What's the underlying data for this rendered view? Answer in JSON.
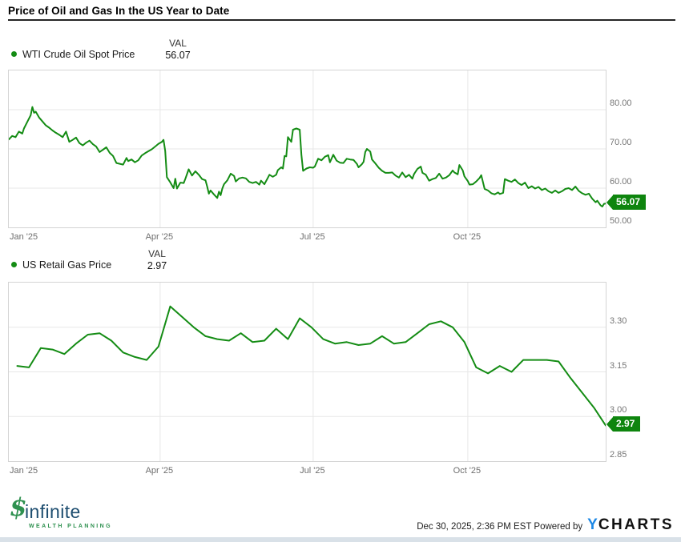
{
  "title": "Price of Oil and Gas In the US Year to Date",
  "chart_data": [
    {
      "type": "line",
      "name": "WTI Crude Oil Spot Price",
      "val_header": "VAL",
      "end_badge": "56.07",
      "last_value": 56.07,
      "color": "#148c14",
      "badge_color": "#0e850e",
      "grid": true,
      "legend_position": "top-left",
      "x_unit": "days since Jan 1 2025",
      "xlim": [
        0,
        355
      ],
      "ylim": [
        50,
        90
      ],
      "x_ticks": [
        {
          "label": "Jan '25",
          "day": 0
        },
        {
          "label": "Apr '25",
          "day": 90
        },
        {
          "label": "Jul '25",
          "day": 181
        },
        {
          "label": "Oct '25",
          "day": 273
        }
      ],
      "y_ticks": [
        {
          "label": "80.00",
          "value": 80
        },
        {
          "label": "70.00",
          "value": 70
        },
        {
          "label": "60.00",
          "value": 60
        },
        {
          "label": "50.00",
          "value": 50
        }
      ],
      "points": [
        [
          0,
          72.4
        ],
        [
          2,
          73.3
        ],
        [
          4,
          73.0
        ],
        [
          6,
          74.4
        ],
        [
          8,
          73.9
        ],
        [
          9,
          75.2
        ],
        [
          11,
          76.9
        ],
        [
          13,
          78.6
        ],
        [
          14,
          80.7
        ],
        [
          15,
          79.2
        ],
        [
          16,
          79.5
        ],
        [
          18,
          78.0
        ],
        [
          20,
          77.0
        ],
        [
          22,
          76.0
        ],
        [
          24,
          75.4
        ],
        [
          26,
          74.7
        ],
        [
          28,
          74.1
        ],
        [
          30,
          73.6
        ],
        [
          32,
          73.0
        ],
        [
          34,
          74.4
        ],
        [
          36,
          71.8
        ],
        [
          38,
          72.3
        ],
        [
          40,
          72.9
        ],
        [
          42,
          71.5
        ],
        [
          44,
          70.9
        ],
        [
          46,
          71.6
        ],
        [
          48,
          72.1
        ],
        [
          50,
          71.2
        ],
        [
          52,
          70.6
        ],
        [
          54,
          69.2
        ],
        [
          56,
          69.8
        ],
        [
          58,
          70.4
        ],
        [
          60,
          69.0
        ],
        [
          62,
          68.2
        ],
        [
          64,
          66.4
        ],
        [
          66,
          66.2
        ],
        [
          68,
          66.0
        ],
        [
          70,
          67.7
        ],
        [
          71,
          66.9
        ],
        [
          73,
          67.3
        ],
        [
          75,
          66.6
        ],
        [
          77,
          67.1
        ],
        [
          79,
          68.3
        ],
        [
          81,
          68.9
        ],
        [
          83,
          69.4
        ],
        [
          85,
          69.9
        ],
        [
          87,
          70.6
        ],
        [
          89,
          71.3
        ],
        [
          91,
          71.8
        ],
        [
          92,
          72.3
        ],
        [
          93,
          69.5
        ],
        [
          94,
          62.8
        ],
        [
          96,
          61.5
        ],
        [
          98,
          60.0
        ],
        [
          99,
          62.4
        ],
        [
          100,
          59.9
        ],
        [
          102,
          61.4
        ],
        [
          104,
          61.3
        ],
        [
          105,
          62.4
        ],
        [
          107,
          64.8
        ],
        [
          109,
          63.2
        ],
        [
          111,
          64.3
        ],
        [
          113,
          63.4
        ],
        [
          115,
          62.3
        ],
        [
          117,
          62.0
        ],
        [
          118,
          60.4
        ],
        [
          119,
          58.6
        ],
        [
          120,
          59.4
        ],
        [
          122,
          58.4
        ],
        [
          124,
          57.5
        ],
        [
          125,
          59.1
        ],
        [
          126,
          58.2
        ],
        [
          127,
          59.9
        ],
        [
          128,
          61.0
        ],
        [
          130,
          62.0
        ],
        [
          132,
          63.7
        ],
        [
          134,
          63.1
        ],
        [
          135,
          61.7
        ],
        [
          137,
          62.5
        ],
        [
          139,
          62.7
        ],
        [
          141,
          62.5
        ],
        [
          143,
          61.6
        ],
        [
          145,
          61.3
        ],
        [
          147,
          61.6
        ],
        [
          149,
          60.9
        ],
        [
          150,
          61.9
        ],
        [
          152,
          61.0
        ],
        [
          154,
          62.6
        ],
        [
          155,
          63.4
        ],
        [
          157,
          62.9
        ],
        [
          159,
          63.4
        ],
        [
          160,
          64.6
        ],
        [
          162,
          65.3
        ],
        [
          163,
          65.0
        ],
        [
          164,
          68.2
        ],
        [
          165,
          68.1
        ],
        [
          166,
          73.0
        ],
        [
          168,
          71.8
        ],
        [
          169,
          74.9
        ],
        [
          171,
          75.2
        ],
        [
          173,
          74.9
        ],
        [
          174,
          68.5
        ],
        [
          175,
          64.4
        ],
        [
          177,
          65.0
        ],
        [
          179,
          65.3
        ],
        [
          181,
          65.2
        ],
        [
          182,
          65.5
        ],
        [
          184,
          67.5
        ],
        [
          186,
          67.1
        ],
        [
          188,
          68.0
        ],
        [
          190,
          68.4
        ],
        [
          191,
          66.6
        ],
        [
          193,
          68.5
        ],
        [
          195,
          67.0
        ],
        [
          197,
          66.5
        ],
        [
          199,
          66.4
        ],
        [
          201,
          67.5
        ],
        [
          203,
          67.3
        ],
        [
          205,
          67.2
        ],
        [
          207,
          66.2
        ],
        [
          208,
          65.3
        ],
        [
          210,
          66.1
        ],
        [
          211,
          66.7
        ],
        [
          212,
          69.2
        ],
        [
          213,
          70.0
        ],
        [
          215,
          69.3
        ],
        [
          216,
          67.3
        ],
        [
          218,
          66.3
        ],
        [
          220,
          65.2
        ],
        [
          222,
          64.4
        ],
        [
          224,
          63.9
        ],
        [
          226,
          63.9
        ],
        [
          228,
          64.0
        ],
        [
          230,
          63.2
        ],
        [
          232,
          62.7
        ],
        [
          234,
          64.0
        ],
        [
          236,
          62.8
        ],
        [
          238,
          63.4
        ],
        [
          240,
          62.4
        ],
        [
          241,
          63.6
        ],
        [
          243,
          64.9
        ],
        [
          245,
          65.5
        ],
        [
          246,
          63.9
        ],
        [
          248,
          63.4
        ],
        [
          250,
          61.9
        ],
        [
          252,
          62.3
        ],
        [
          254,
          62.6
        ],
        [
          256,
          63.7
        ],
        [
          258,
          62.4
        ],
        [
          260,
          62.7
        ],
        [
          262,
          63.3
        ],
        [
          264,
          64.5
        ],
        [
          265,
          64.0
        ],
        [
          267,
          63.5
        ],
        [
          268,
          65.9
        ],
        [
          270,
          64.5
        ],
        [
          271,
          63.0
        ],
        [
          273,
          61.8
        ],
        [
          274,
          60.9
        ],
        [
          276,
          61.0
        ],
        [
          278,
          61.7
        ],
        [
          280,
          62.6
        ],
        [
          281,
          63.3
        ],
        [
          283,
          59.8
        ],
        [
          285,
          59.4
        ],
        [
          287,
          58.7
        ],
        [
          289,
          58.4
        ],
        [
          291,
          58.9
        ],
        [
          292,
          58.5
        ],
        [
          294,
          58.8
        ],
        [
          295,
          62.3
        ],
        [
          297,
          61.9
        ],
        [
          299,
          61.6
        ],
        [
          301,
          62.2
        ],
        [
          303,
          61.3
        ],
        [
          305,
          60.8
        ],
        [
          307,
          61.4
        ],
        [
          309,
          60.0
        ],
        [
          311,
          60.5
        ],
        [
          313,
          59.9
        ],
        [
          315,
          60.3
        ],
        [
          317,
          59.5
        ],
        [
          319,
          59.9
        ],
        [
          321,
          59.2
        ],
        [
          323,
          58.8
        ],
        [
          325,
          59.4
        ],
        [
          327,
          58.8
        ],
        [
          329,
          59.2
        ],
        [
          331,
          59.8
        ],
        [
          333,
          60.0
        ],
        [
          335,
          59.5
        ],
        [
          337,
          60.4
        ],
        [
          339,
          59.3
        ],
        [
          341,
          58.7
        ],
        [
          343,
          58.3
        ],
        [
          345,
          58.6
        ],
        [
          347,
          57.3
        ],
        [
          349,
          56.4
        ],
        [
          350,
          56.8
        ],
        [
          352,
          55.6
        ],
        [
          353,
          55.3
        ],
        [
          354,
          56.0
        ],
        [
          355,
          56.07
        ]
      ]
    },
    {
      "type": "line",
      "name": "US Retail Gas Price",
      "val_header": "VAL",
      "end_badge": "2.97",
      "last_value": 2.97,
      "color": "#148c14",
      "badge_color": "#0e850e",
      "grid": true,
      "legend_position": "top-left",
      "x_unit": "days since Jan 1 2025",
      "xlim": [
        0,
        355
      ],
      "ylim": [
        2.85,
        3.45
      ],
      "x_ticks": [
        {
          "label": "Jan '25",
          "day": 0
        },
        {
          "label": "Apr '25",
          "day": 90
        },
        {
          "label": "Jul '25",
          "day": 181
        },
        {
          "label": "Oct '25",
          "day": 273
        }
      ],
      "y_ticks": [
        {
          "label": "3.30",
          "value": 3.3
        },
        {
          "label": "3.15",
          "value": 3.15
        },
        {
          "label": "3.00",
          "value": 3.0
        },
        {
          "label": "2.85",
          "value": 2.85
        }
      ],
      "points": [
        [
          5,
          3.17
        ],
        [
          12,
          3.165
        ],
        [
          19,
          3.23
        ],
        [
          26,
          3.225
        ],
        [
          33,
          3.21
        ],
        [
          40,
          3.245
        ],
        [
          47,
          3.275
        ],
        [
          54,
          3.28
        ],
        [
          61,
          3.255
        ],
        [
          68,
          3.215
        ],
        [
          75,
          3.2
        ],
        [
          82,
          3.19
        ],
        [
          89,
          3.235
        ],
        [
          96,
          3.37
        ],
        [
          103,
          3.335
        ],
        [
          110,
          3.3
        ],
        [
          117,
          3.27
        ],
        [
          124,
          3.26
        ],
        [
          131,
          3.255
        ],
        [
          138,
          3.28
        ],
        [
          145,
          3.25
        ],
        [
          152,
          3.255
        ],
        [
          159,
          3.295
        ],
        [
          166,
          3.26
        ],
        [
          173,
          3.33
        ],
        [
          180,
          3.3
        ],
        [
          187,
          3.26
        ],
        [
          194,
          3.245
        ],
        [
          201,
          3.25
        ],
        [
          208,
          3.24
        ],
        [
          215,
          3.245
        ],
        [
          222,
          3.27
        ],
        [
          229,
          3.245
        ],
        [
          236,
          3.25
        ],
        [
          243,
          3.28
        ],
        [
          250,
          3.31
        ],
        [
          257,
          3.32
        ],
        [
          264,
          3.3
        ],
        [
          271,
          3.25
        ],
        [
          278,
          3.165
        ],
        [
          285,
          3.145
        ],
        [
          292,
          3.17
        ],
        [
          299,
          3.15
        ],
        [
          306,
          3.19
        ],
        [
          313,
          3.19
        ],
        [
          320,
          3.19
        ],
        [
          327,
          3.185
        ],
        [
          334,
          3.13
        ],
        [
          341,
          3.08
        ],
        [
          348,
          3.03
        ],
        [
          355,
          2.97
        ]
      ]
    }
  ],
  "footer": {
    "logo": {
      "symbol": "$",
      "name": "infinite",
      "tagline": "WEALTH PLANNING"
    },
    "timestamp_credit": "Dec 30, 2025, 2:36 PM EST Powered by",
    "brand_y": "Y",
    "brand_charts": "CHARTS"
  }
}
